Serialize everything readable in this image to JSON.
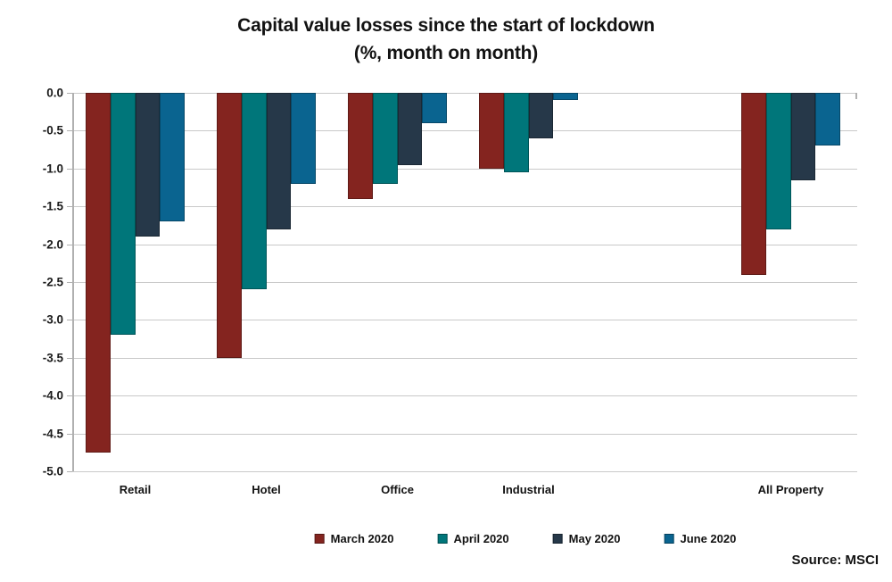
{
  "chart_data": {
    "type": "bar",
    "title": "Capital value losses since the start of lockdown",
    "subtitle": "(%, month on month)",
    "categories": [
      "Retail",
      "Hotel",
      "Office",
      "Industrial",
      "All Property"
    ],
    "category_slots": [
      0,
      1,
      2,
      3,
      5
    ],
    "series": [
      {
        "name": "March 2020",
        "color": "#84241f",
        "values": [
          -4.75,
          -3.5,
          -1.4,
          -1.0,
          -2.4
        ]
      },
      {
        "name": "April 2020",
        "color": "#00767a",
        "values": [
          -3.2,
          -2.6,
          -1.2,
          -1.05,
          -1.8
        ]
      },
      {
        "name": "May 2020",
        "color": "#263849",
        "values": [
          -1.9,
          -1.8,
          -0.95,
          -0.6,
          -1.15
        ]
      },
      {
        "name": "June 2020",
        "color": "#0a6490",
        "values": [
          -1.7,
          -1.2,
          -0.4,
          -0.1,
          -0.7
        ]
      }
    ],
    "ylim": [
      0,
      -5
    ],
    "ytick_step": 0.5,
    "ytick_labels": [
      "0.0",
      "-0.5",
      "-1.0",
      "-1.5",
      "-2.0",
      "-2.5",
      "-3.0",
      "-3.5",
      "-4.0",
      "-4.5",
      "-5.0"
    ],
    "grid": true,
    "legend_position": "bottom-center",
    "source": "Source: MSCI"
  }
}
